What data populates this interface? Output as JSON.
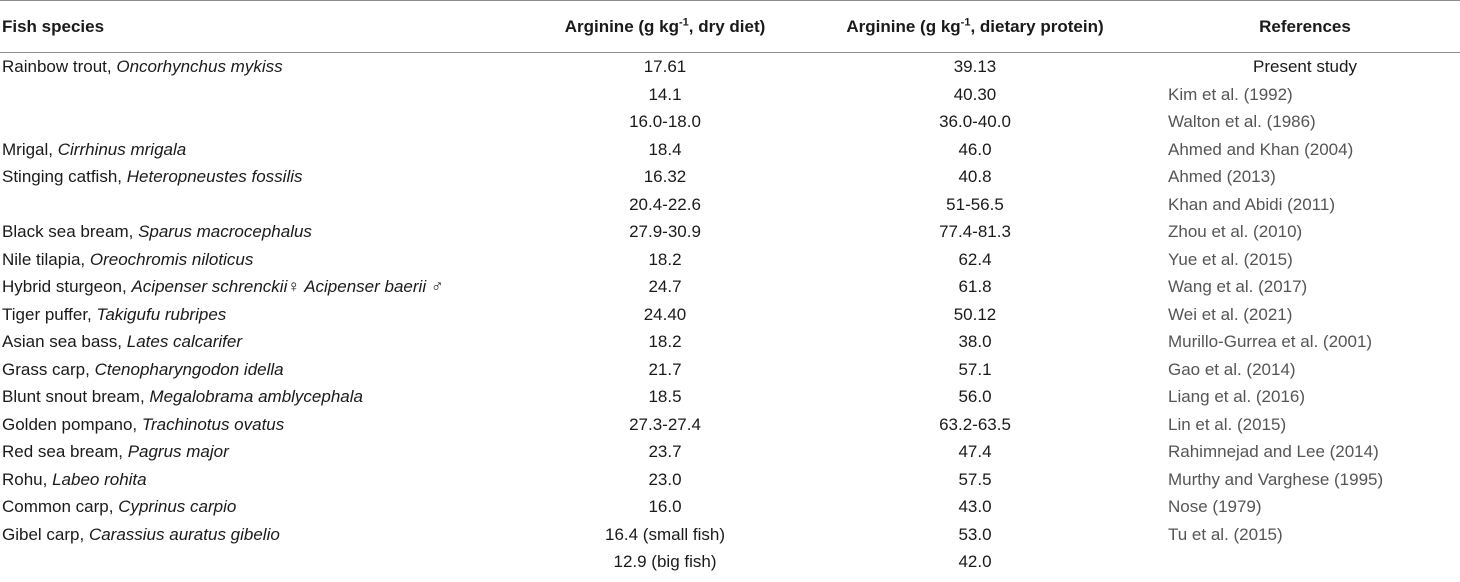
{
  "table": {
    "headers": {
      "species": "Fish species",
      "dry_pre": "Arginine (g kg",
      "dry_sup": "-1",
      "dry_post": ", dry diet)",
      "prot_pre": "Arginine (g kg",
      "prot_sup": "-1",
      "prot_post": ", dietary protein)",
      "ref": "References"
    },
    "rows": [
      {
        "common": "Rainbow trout, ",
        "sci": "Oncorhynchus mykiss",
        "dry": "17.61",
        "prot": "39.13",
        "ref": "Present study"
      },
      {
        "common": "",
        "sci": "",
        "dry": "14.1",
        "prot": "40.30",
        "ref": "Kim et al. (1992)"
      },
      {
        "common": "",
        "sci": "",
        "dry": "16.0-18.0",
        "prot": "36.0-40.0",
        "ref": "Walton et al. (1986)"
      },
      {
        "common": "Mrigal, ",
        "sci": "Cirrhinus mrigala",
        "dry": "18.4",
        "prot": "46.0",
        "ref": "Ahmed and Khan (2004)"
      },
      {
        "common": "Stinging catfish, ",
        "sci": "Heteropneustes fossilis",
        "dry": "16.32",
        "prot": "40.8",
        "ref": "Ahmed (2013)"
      },
      {
        "common": "",
        "sci": "",
        "dry": "20.4-22.6",
        "prot": "51-56.5",
        "ref": "Khan and Abidi (2011)"
      },
      {
        "common": "Black sea bream, ",
        "sci": "Sparus macrocephalus",
        "dry": "27.9-30.9",
        "prot": "77.4-81.3",
        "ref": "Zhou et al. (2010)"
      },
      {
        "common": "Nile tilapia, ",
        "sci": "Oreochromis niloticus",
        "dry": "18.2",
        "prot": "62.4",
        "ref": "Yue et al. (2015)"
      },
      {
        "common": "Hybrid sturgeon, ",
        "sci": "Acipenser schrenckii♀ Acipenser baerii ♂",
        "dry": "24.7",
        "prot": "61.8",
        "ref": "Wang et al. (2017)"
      },
      {
        "common": "Tiger puffer, ",
        "sci": "Takigufu rubripes",
        "dry": "24.40",
        "prot": "50.12",
        "ref": "Wei et al. (2021)"
      },
      {
        "common": "Asian sea bass, ",
        "sci": "Lates calcarifer",
        "dry": "18.2",
        "prot": "38.0",
        "ref": "Murillo-Gurrea et al. (2001)"
      },
      {
        "common": "Grass carp, ",
        "sci": "Ctenopharyngodon idella",
        "dry": "21.7",
        "prot": "57.1",
        "ref": "Gao et al. (2014)"
      },
      {
        "common": "Blunt snout bream, ",
        "sci": "Megalobrama amblycephala",
        "dry": "18.5",
        "prot": "56.0",
        "ref": "Liang et al. (2016)"
      },
      {
        "common": "Golden pompano, ",
        "sci": "Trachinotus ovatus",
        "dry": "27.3-27.4",
        "prot": "63.2-63.5",
        "ref": "Lin et al. (2015)"
      },
      {
        "common": "Red sea bream, ",
        "sci": "Pagrus major",
        "dry": "23.7",
        "prot": "47.4",
        "ref": "Rahimnejad and Lee (2014)"
      },
      {
        "common": "Rohu, ",
        "sci": "Labeo rohita",
        "dry": "23.0",
        "prot": "57.5",
        "ref": "Murthy and Varghese (1995)"
      },
      {
        "common": "Common carp, ",
        "sci": "Cyprinus carpio",
        "dry": "16.0",
        "prot": "43.0",
        "ref": "Nose (1979)"
      },
      {
        "common": "Gibel carp, ",
        "sci": "Carassius auratus gibelio",
        "dry": "16.4 (small fish)",
        "prot": "53.0",
        "ref": "Tu et al. (2015)"
      },
      {
        "common": "",
        "sci": "",
        "dry": "12.9 (big fish)",
        "prot": "42.0",
        "ref": ""
      }
    ]
  }
}
